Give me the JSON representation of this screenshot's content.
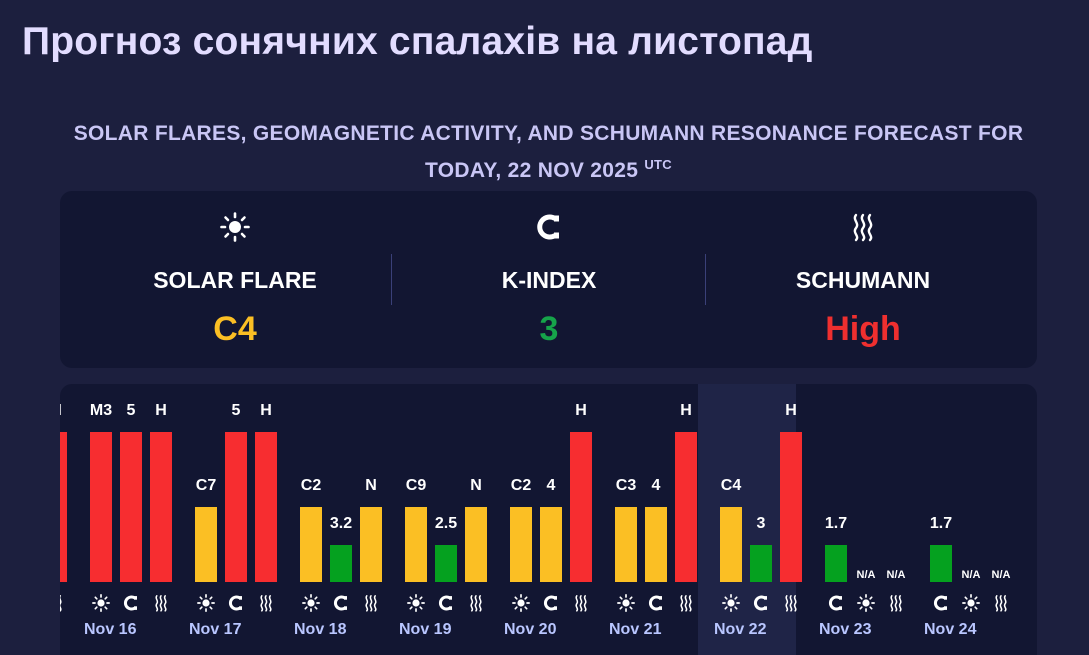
{
  "page": {
    "title": "Прогноз сонячних спалахів на листопад"
  },
  "forecast": {
    "heading": "SOLAR FLARES, GEOMAGNETIC ACTIVITY, AND SCHUMANN RESONANCE FORECAST FOR TODAY, 22 NOV 2025",
    "heading_suffix": "UTC"
  },
  "summary": {
    "solar": {
      "label": "SOLAR FLARE",
      "value": "C4",
      "color": "#fbbf24",
      "icon": "sun-icon"
    },
    "kindex": {
      "label": "K-INDEX",
      "value": "3",
      "color": "#16a34a",
      "icon": "magnet-icon"
    },
    "schumann": {
      "label": "SCHUMANN",
      "value": "High",
      "color": "#ef2f2f",
      "icon": "waves-icon"
    }
  },
  "colors": {
    "high": "#f72d30",
    "medium": "#fbbf24",
    "low": "#05a11f",
    "background": "#1c1f3e",
    "panel": "#121632",
    "highlight": "#1f2447"
  },
  "chart_data": {
    "type": "bar",
    "levels": {
      "low": 1,
      "medium": 2,
      "high": 3
    },
    "selected_day": "Nov 22",
    "days": [
      {
        "date": "",
        "bars": [
          {
            "label": "H",
            "level": 3
          }
        ],
        "icons": [
          "waves-icon"
        ]
      },
      {
        "date": "Nov 16",
        "bars": [
          {
            "label": "M3",
            "level": 3
          },
          {
            "label": "5",
            "level": 3
          },
          {
            "label": "H",
            "level": 3
          }
        ],
        "icons": [
          "sun-icon",
          "magnet-icon",
          "waves-icon"
        ]
      },
      {
        "date": "Nov 17",
        "bars": [
          {
            "label": "C7",
            "level": 2
          },
          {
            "label": "5",
            "level": 3
          },
          {
            "label": "H",
            "level": 3
          }
        ],
        "icons": [
          "sun-icon",
          "magnet-icon",
          "waves-icon"
        ]
      },
      {
        "date": "Nov 18",
        "bars": [
          {
            "label": "C2",
            "level": 2
          },
          {
            "label": "3.2",
            "level": 1
          },
          {
            "label": "N",
            "level": 2
          }
        ],
        "icons": [
          "sun-icon",
          "magnet-icon",
          "waves-icon"
        ]
      },
      {
        "date": "Nov 19",
        "bars": [
          {
            "label": "C9",
            "level": 2
          },
          {
            "label": "2.5",
            "level": 1
          },
          {
            "label": "N",
            "level": 2
          }
        ],
        "icons": [
          "sun-icon",
          "magnet-icon",
          "waves-icon"
        ]
      },
      {
        "date": "Nov 20",
        "bars": [
          {
            "label": "C2",
            "level": 2
          },
          {
            "label": "4",
            "level": 2
          },
          {
            "label": "H",
            "level": 3
          }
        ],
        "icons": [
          "sun-icon",
          "magnet-icon",
          "waves-icon"
        ]
      },
      {
        "date": "Nov 21",
        "bars": [
          {
            "label": "C3",
            "level": 2
          },
          {
            "label": "4",
            "level": 2
          },
          {
            "label": "H",
            "level": 3
          }
        ],
        "icons": [
          "sun-icon",
          "magnet-icon",
          "waves-icon"
        ]
      },
      {
        "date": "Nov 22",
        "bars": [
          {
            "label": "C4",
            "level": 2
          },
          {
            "label": "3",
            "level": 1
          },
          {
            "label": "H",
            "level": 3
          }
        ],
        "icons": [
          "sun-icon",
          "magnet-icon",
          "waves-icon"
        ]
      },
      {
        "date": "Nov 23",
        "bars": [
          {
            "label": "1.7",
            "level": 1
          },
          {
            "label": "N/A",
            "level": 0
          },
          {
            "label": "N/A",
            "level": 0
          }
        ],
        "icons": [
          "magnet-icon",
          "sun-icon",
          "waves-icon"
        ]
      },
      {
        "date": "Nov 24",
        "bars": [
          {
            "label": "1.7",
            "level": 1
          },
          {
            "label": "N/A",
            "level": 0
          },
          {
            "label": "N/A",
            "level": 0
          }
        ],
        "icons": [
          "magnet-icon",
          "sun-icon",
          "waves-icon"
        ]
      }
    ]
  }
}
